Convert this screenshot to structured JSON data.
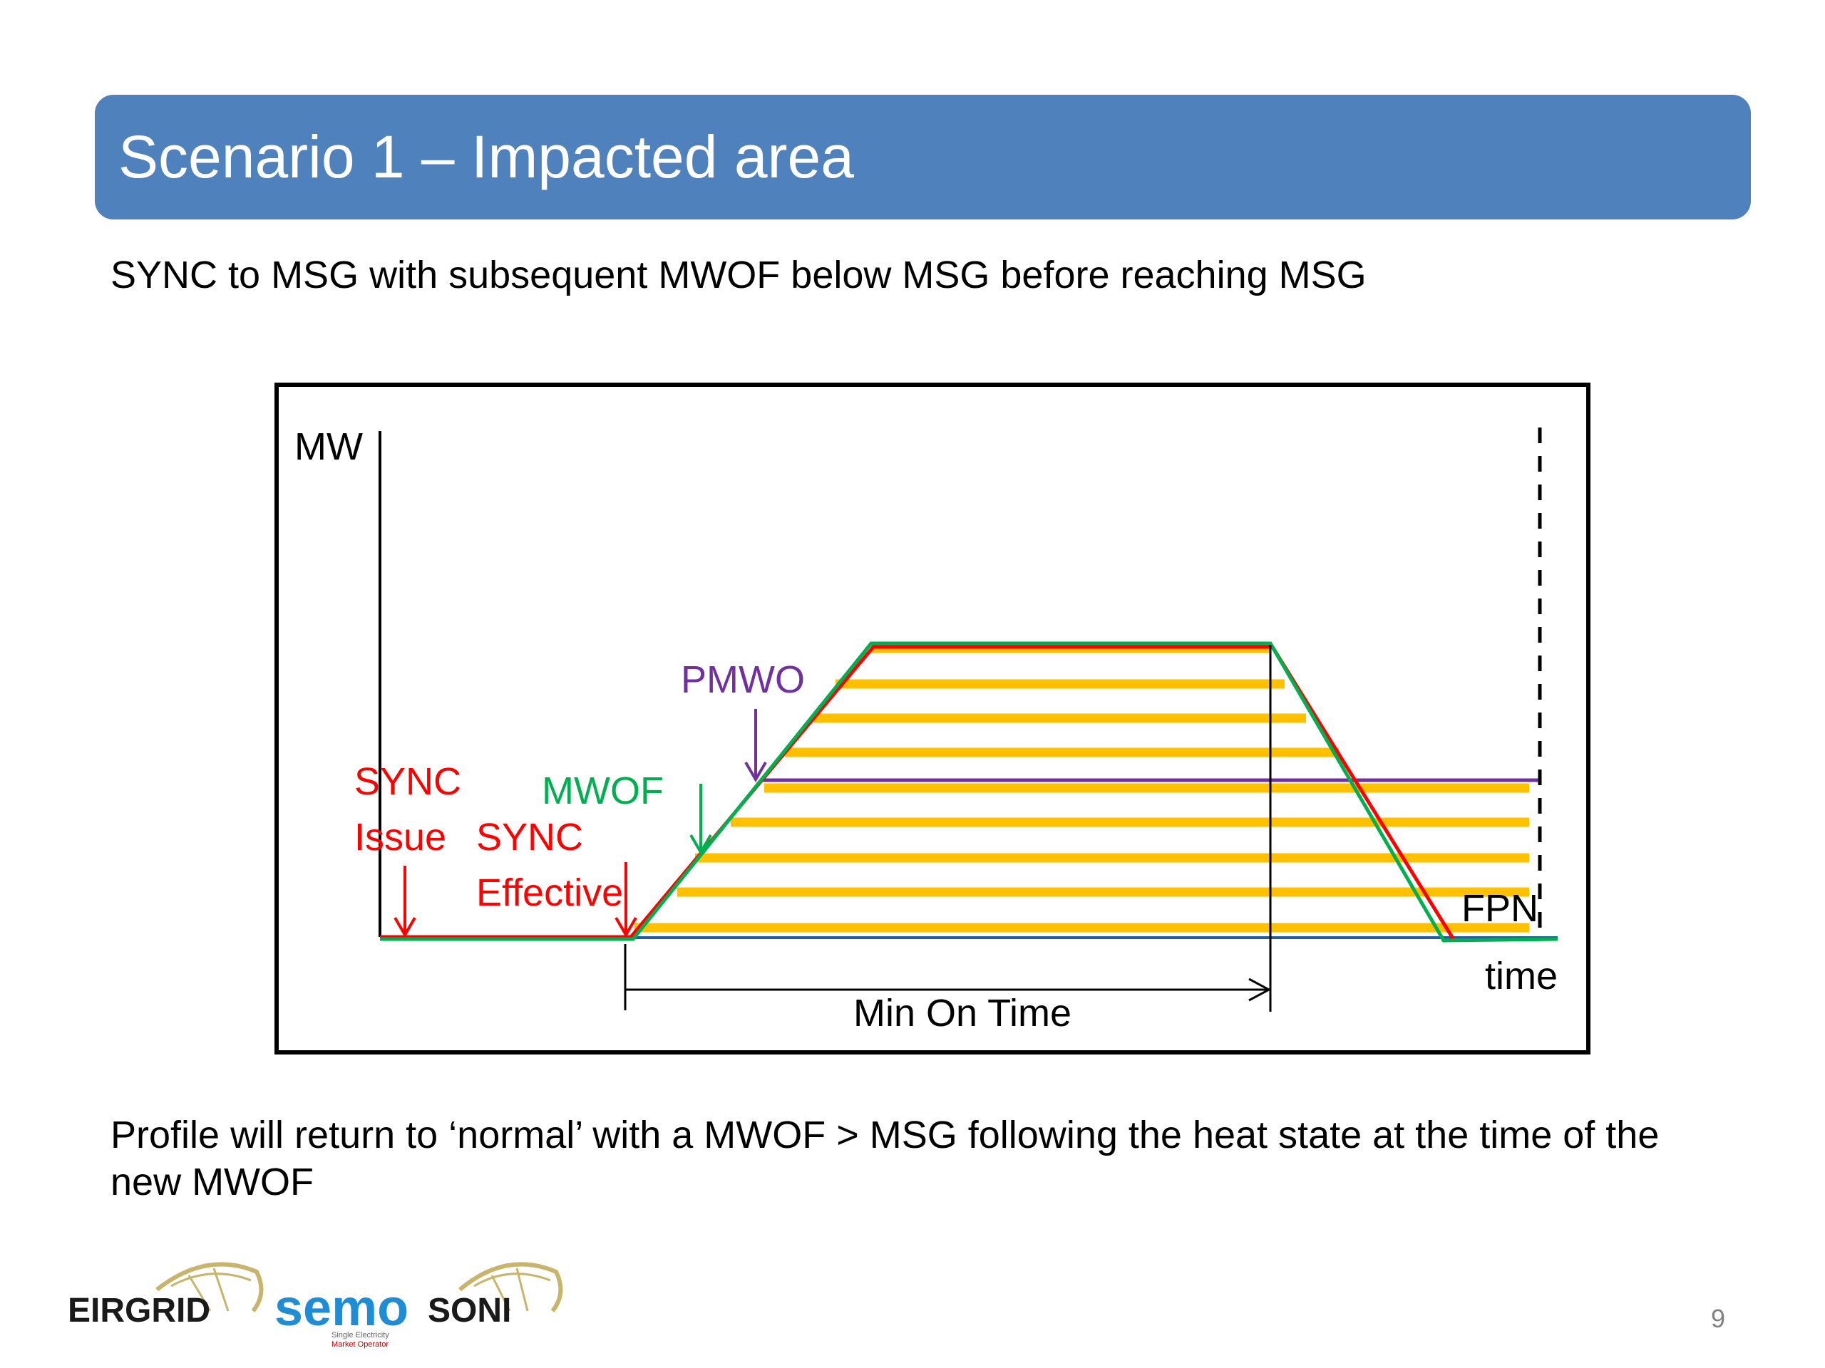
{
  "slide": {
    "title": "Scenario 1 – Impacted area",
    "subtitle": "SYNC to MSG with subsequent MWOF below MSG before reaching MSG",
    "footer": "Profile will return to ‘normal’ with a MWOF > MSG following the heat state at the time of the new MWOF",
    "page_number": "9"
  },
  "diagram": {
    "axis_y_label": "MW",
    "axis_x_label": "time",
    "labels": {
      "sync_issue_1": "SYNC",
      "sync_issue_2": "Issue",
      "sync_effective_1": "SYNC",
      "sync_effective_2": "Effective",
      "mwof": "MWOF",
      "pmwo": "PMWO",
      "fpn": "FPN",
      "min_on_time": "Min On Time"
    },
    "colors": {
      "sync": "#ff0000",
      "mwof": "#00b050",
      "pmwo": "#7030a0",
      "impacted_area": "#ffc000",
      "fpn": "#1f5fa0"
    }
  },
  "logos": {
    "eirgrid": "EIRGRID",
    "semo": "semo",
    "semo_tag_1": "Single Electricity",
    "semo_tag_2": "Market Operator",
    "soni": "SONI"
  }
}
